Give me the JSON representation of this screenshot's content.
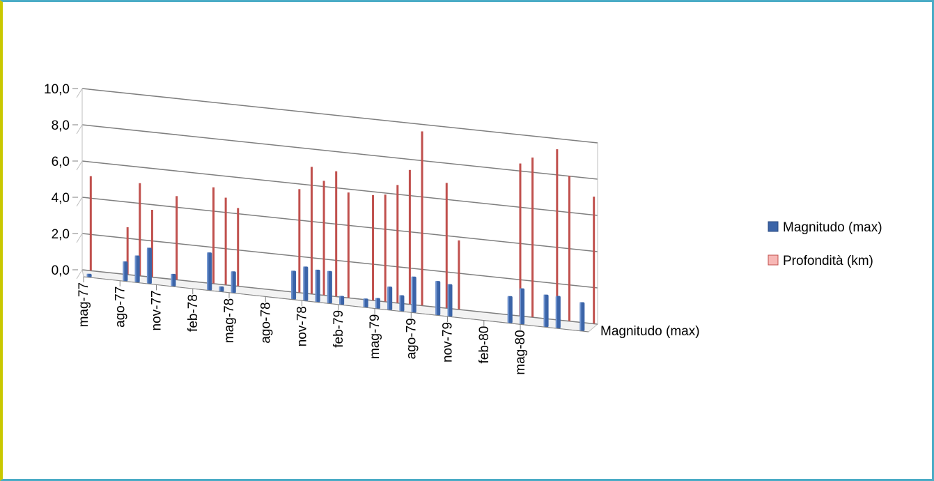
{
  "chart_data": {
    "type": "bar",
    "title": "",
    "xlabel": "",
    "ylabel": "",
    "ylim": [
      0,
      10
    ],
    "y_ticks": [
      "0,0",
      "2,0",
      "4,0",
      "6,0",
      "8,0",
      "10,0"
    ],
    "x_tick_labels": [
      "mag-77",
      "ago-77",
      "nov-77",
      "feb-78",
      "mag-78",
      "ago-78",
      "nov-78",
      "feb-79",
      "mag-79",
      "ago-79",
      "nov-79",
      "feb-80",
      "mag-80"
    ],
    "depth_axis_label": "Magnitudo (max)",
    "grid": true,
    "legend_position": "right",
    "series": [
      {
        "name": "Magnitudo (max)",
        "color": "#3b64a8",
        "values": [
          0.2,
          null,
          null,
          1.1,
          1.5,
          2.0,
          null,
          0.7,
          null,
          null,
          2.1,
          0.3,
          1.2,
          null,
          null,
          null,
          null,
          1.6,
          1.9,
          1.8,
          1.8,
          0.5,
          null,
          0.5,
          0.6,
          1.3,
          0.9,
          2.0,
          null,
          1.9,
          1.8,
          null,
          null,
          null,
          null,
          1.5,
          2.0,
          null,
          1.8,
          1.8,
          null,
          1.6
        ]
      },
      {
        "name": "Profondità (km)",
        "color": "#c0504d",
        "values": [
          5.2,
          null,
          null,
          2.6,
          5.1,
          3.7,
          null,
          4.6,
          null,
          null,
          5.3,
          4.8,
          4.3,
          null,
          null,
          null,
          null,
          5.7,
          7.0,
          6.3,
          6.9,
          5.8,
          null,
          5.8,
          5.9,
          6.5,
          7.4,
          9.6,
          null,
          6.9,
          3.8,
          null,
          null,
          null,
          null,
          8.4,
          8.8,
          null,
          9.4,
          8.0,
          null,
          7.0
        ]
      }
    ]
  },
  "legend": [
    {
      "label": "Magnitudo (max)",
      "color": "#3b64a8",
      "icon": "blue-square-icon"
    },
    {
      "label": "Profondità (km)",
      "color": "#f7b7b5",
      "icon": "pink-square-icon"
    }
  ]
}
